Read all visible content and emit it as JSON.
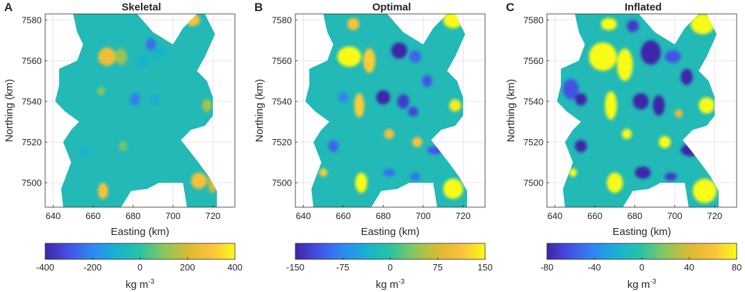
{
  "chart_data": [
    {
      "type": "heatmap",
      "panel_label": "A",
      "title": "Skeletal",
      "xlabel": "Easting (km)",
      "ylabel": "Northing (km)",
      "xlim": [
        636,
        731
      ],
      "ylim": [
        7488,
        7583
      ],
      "x_ticks": [
        640,
        660,
        680,
        700,
        720
      ],
      "y_ticks": [
        7500,
        7520,
        7540,
        7560,
        7580
      ],
      "grid": true,
      "colorbar": {
        "min": -400,
        "max": 400,
        "ticks": [
          -400,
          -200,
          0,
          200,
          400
        ],
        "tick_labels": [
          "-400",
          "-200",
          "0",
          "200",
          "400"
        ],
        "label_base": "kg m",
        "label_exp": "-3",
        "colormap": "parula"
      },
      "anomalies": [
        {
          "x": 667,
          "y": 7562,
          "value": 260,
          "rx": 4.5,
          "ry": 4.5
        },
        {
          "x": 674,
          "y": 7562,
          "value": 120,
          "rx": 3,
          "ry": 4
        },
        {
          "x": 664,
          "y": 7545,
          "value": 100,
          "rx": 2,
          "ry": 2
        },
        {
          "x": 689,
          "y": 7568,
          "value": -250,
          "rx": 2.5,
          "ry": 3
        },
        {
          "x": 693,
          "y": 7564,
          "value": -100,
          "rx": 3,
          "ry": 3
        },
        {
          "x": 685,
          "y": 7560,
          "value": -90,
          "rx": 3,
          "ry": 3
        },
        {
          "x": 681,
          "y": 7541,
          "value": -220,
          "rx": 2.5,
          "ry": 3
        },
        {
          "x": 691,
          "y": 7541,
          "value": -120,
          "rx": 2.5,
          "ry": 2
        },
        {
          "x": 710,
          "y": 7580,
          "value": 300,
          "rx": 3.5,
          "ry": 3
        },
        {
          "x": 697,
          "y": 7579,
          "value": 60,
          "rx": 2,
          "ry": 2
        },
        {
          "x": 717,
          "y": 7538,
          "value": 140,
          "rx": 2.5,
          "ry": 3
        },
        {
          "x": 656,
          "y": 7515,
          "value": -80,
          "rx": 3,
          "ry": 3
        },
        {
          "x": 675,
          "y": 7518,
          "value": 80,
          "rx": 2,
          "ry": 2.5
        },
        {
          "x": 665,
          "y": 7496,
          "value": 300,
          "rx": 2.5,
          "ry": 4
        },
        {
          "x": 713,
          "y": 7501,
          "value": 280,
          "rx": 4,
          "ry": 4
        },
        {
          "x": 720,
          "y": 7500,
          "value": 180,
          "rx": 2.5,
          "ry": 5
        }
      ]
    },
    {
      "type": "heatmap",
      "panel_label": "B",
      "title": "Optimal",
      "xlabel": "Easting (km)",
      "ylabel": "Northing (km)",
      "xlim": [
        636,
        731
      ],
      "ylim": [
        7488,
        7583
      ],
      "x_ticks": [
        640,
        660,
        680,
        700,
        720
      ],
      "y_ticks": [
        7500,
        7520,
        7540,
        7560,
        7580
      ],
      "grid": true,
      "colorbar": {
        "min": -150,
        "max": 150,
        "ticks": [
          -150,
          -75,
          0,
          75,
          150
        ],
        "tick_labels": [
          "-150",
          "-75",
          "0",
          "75",
          "150"
        ],
        "label_base": "kg m",
        "label_exp": "-3",
        "colormap": "parula"
      },
      "anomalies": [
        {
          "x": 663,
          "y": 7562,
          "value": 150,
          "rx": 6,
          "ry": 5
        },
        {
          "x": 673,
          "y": 7560,
          "value": 120,
          "rx": 3,
          "ry": 6
        },
        {
          "x": 668,
          "y": 7538,
          "value": 120,
          "rx": 2.5,
          "ry": 6
        },
        {
          "x": 665,
          "y": 7578,
          "value": 110,
          "rx": 3,
          "ry": 3
        },
        {
          "x": 688,
          "y": 7565,
          "value": -150,
          "rx": 4,
          "ry": 4
        },
        {
          "x": 696,
          "y": 7562,
          "value": -100,
          "rx": 3,
          "ry": 3
        },
        {
          "x": 702,
          "y": 7550,
          "value": -110,
          "rx": 2.5,
          "ry": 3
        },
        {
          "x": 680,
          "y": 7542,
          "value": -150,
          "rx": 3.5,
          "ry": 3.5
        },
        {
          "x": 690,
          "y": 7540,
          "value": -130,
          "rx": 3,
          "ry": 3.5
        },
        {
          "x": 695,
          "y": 7535,
          "value": -120,
          "rx": 2.5,
          "ry": 2.5
        },
        {
          "x": 715,
          "y": 7580,
          "value": 150,
          "rx": 5,
          "ry": 4
        },
        {
          "x": 700,
          "y": 7579,
          "value": 90,
          "rx": 2.5,
          "ry": 2.5
        },
        {
          "x": 716,
          "y": 7538,
          "value": 140,
          "rx": 3,
          "ry": 3
        },
        {
          "x": 655,
          "y": 7518,
          "value": -100,
          "rx": 2.5,
          "ry": 3
        },
        {
          "x": 660,
          "y": 7542,
          "value": -80,
          "rx": 2.5,
          "ry": 2.5
        },
        {
          "x": 683,
          "y": 7524,
          "value": 100,
          "rx": 2.5,
          "ry": 2.5
        },
        {
          "x": 697,
          "y": 7520,
          "value": 110,
          "rx": 2.5,
          "ry": 2.5
        },
        {
          "x": 706,
          "y": 7516,
          "value": -110,
          "rx": 4,
          "ry": 2
        },
        {
          "x": 669,
          "y": 7500,
          "value": 150,
          "rx": 3,
          "ry": 5
        },
        {
          "x": 650,
          "y": 7505,
          "value": 120,
          "rx": 2,
          "ry": 2
        },
        {
          "x": 683,
          "y": 7505,
          "value": -90,
          "rx": 3,
          "ry": 2
        },
        {
          "x": 696,
          "y": 7503,
          "value": -90,
          "rx": 2.5,
          "ry": 2
        },
        {
          "x": 715,
          "y": 7497,
          "value": 150,
          "rx": 5,
          "ry": 5
        }
      ]
    },
    {
      "type": "heatmap",
      "panel_label": "C",
      "title": "Inflated",
      "xlabel": "Easting (km)",
      "ylabel": "Northing (km)",
      "xlim": [
        636,
        731
      ],
      "ylim": [
        7488,
        7583
      ],
      "x_ticks": [
        640,
        660,
        680,
        700,
        720
      ],
      "y_ticks": [
        7500,
        7520,
        7540,
        7560,
        7580
      ],
      "grid": true,
      "colorbar": {
        "min": -80,
        "max": 80,
        "ticks": [
          -80,
          -40,
          0,
          40,
          80
        ],
        "tick_labels": [
          "-80",
          "-40",
          "0",
          "40",
          "80"
        ],
        "label_base": "kg m",
        "label_exp": "-3",
        "colormap": "parula"
      },
      "anomalies": [
        {
          "x": 664,
          "y": 7562,
          "value": 80,
          "rx": 7,
          "ry": 7
        },
        {
          "x": 675,
          "y": 7558,
          "value": 80,
          "rx": 4,
          "ry": 8
        },
        {
          "x": 667,
          "y": 7578,
          "value": 80,
          "rx": 4,
          "ry": 3
        },
        {
          "x": 668,
          "y": 7538,
          "value": 80,
          "rx": 3,
          "ry": 7
        },
        {
          "x": 648,
          "y": 7546,
          "value": -60,
          "rx": 4,
          "ry": 5
        },
        {
          "x": 653,
          "y": 7541,
          "value": -80,
          "rx": 3,
          "ry": 3
        },
        {
          "x": 679,
          "y": 7577,
          "value": -70,
          "rx": 3,
          "ry": 3
        },
        {
          "x": 688,
          "y": 7564,
          "value": -80,
          "rx": 5,
          "ry": 6
        },
        {
          "x": 699,
          "y": 7562,
          "value": -60,
          "rx": 4,
          "ry": 3
        },
        {
          "x": 706,
          "y": 7552,
          "value": -80,
          "rx": 3,
          "ry": 4
        },
        {
          "x": 683,
          "y": 7540,
          "value": -80,
          "rx": 4,
          "ry": 4
        },
        {
          "x": 692,
          "y": 7538,
          "value": -80,
          "rx": 3,
          "ry": 5
        },
        {
          "x": 714,
          "y": 7578,
          "value": 80,
          "rx": 6,
          "ry": 5
        },
        {
          "x": 698,
          "y": 7578,
          "value": 70,
          "rx": 3,
          "ry": 3
        },
        {
          "x": 716,
          "y": 7538,
          "value": 80,
          "rx": 4,
          "ry": 4
        },
        {
          "x": 653,
          "y": 7518,
          "value": -80,
          "rx": 3,
          "ry": 3
        },
        {
          "x": 676,
          "y": 7524,
          "value": 80,
          "rx": 2.5,
          "ry": 2.5
        },
        {
          "x": 695,
          "y": 7520,
          "value": 80,
          "rx": 3,
          "ry": 3
        },
        {
          "x": 708,
          "y": 7516,
          "value": -80,
          "rx": 5,
          "ry": 3
        },
        {
          "x": 670,
          "y": 7500,
          "value": 80,
          "rx": 4,
          "ry": 5
        },
        {
          "x": 649,
          "y": 7505,
          "value": 80,
          "rx": 2,
          "ry": 2
        },
        {
          "x": 684,
          "y": 7505,
          "value": -80,
          "rx": 4,
          "ry": 3
        },
        {
          "x": 698,
          "y": 7503,
          "value": -70,
          "rx": 3,
          "ry": 2
        },
        {
          "x": 715,
          "y": 7496,
          "value": 80,
          "rx": 6,
          "ry": 6
        },
        {
          "x": 702,
          "y": 7534,
          "value": 50,
          "rx": 2,
          "ry": 2
        }
      ]
    }
  ]
}
